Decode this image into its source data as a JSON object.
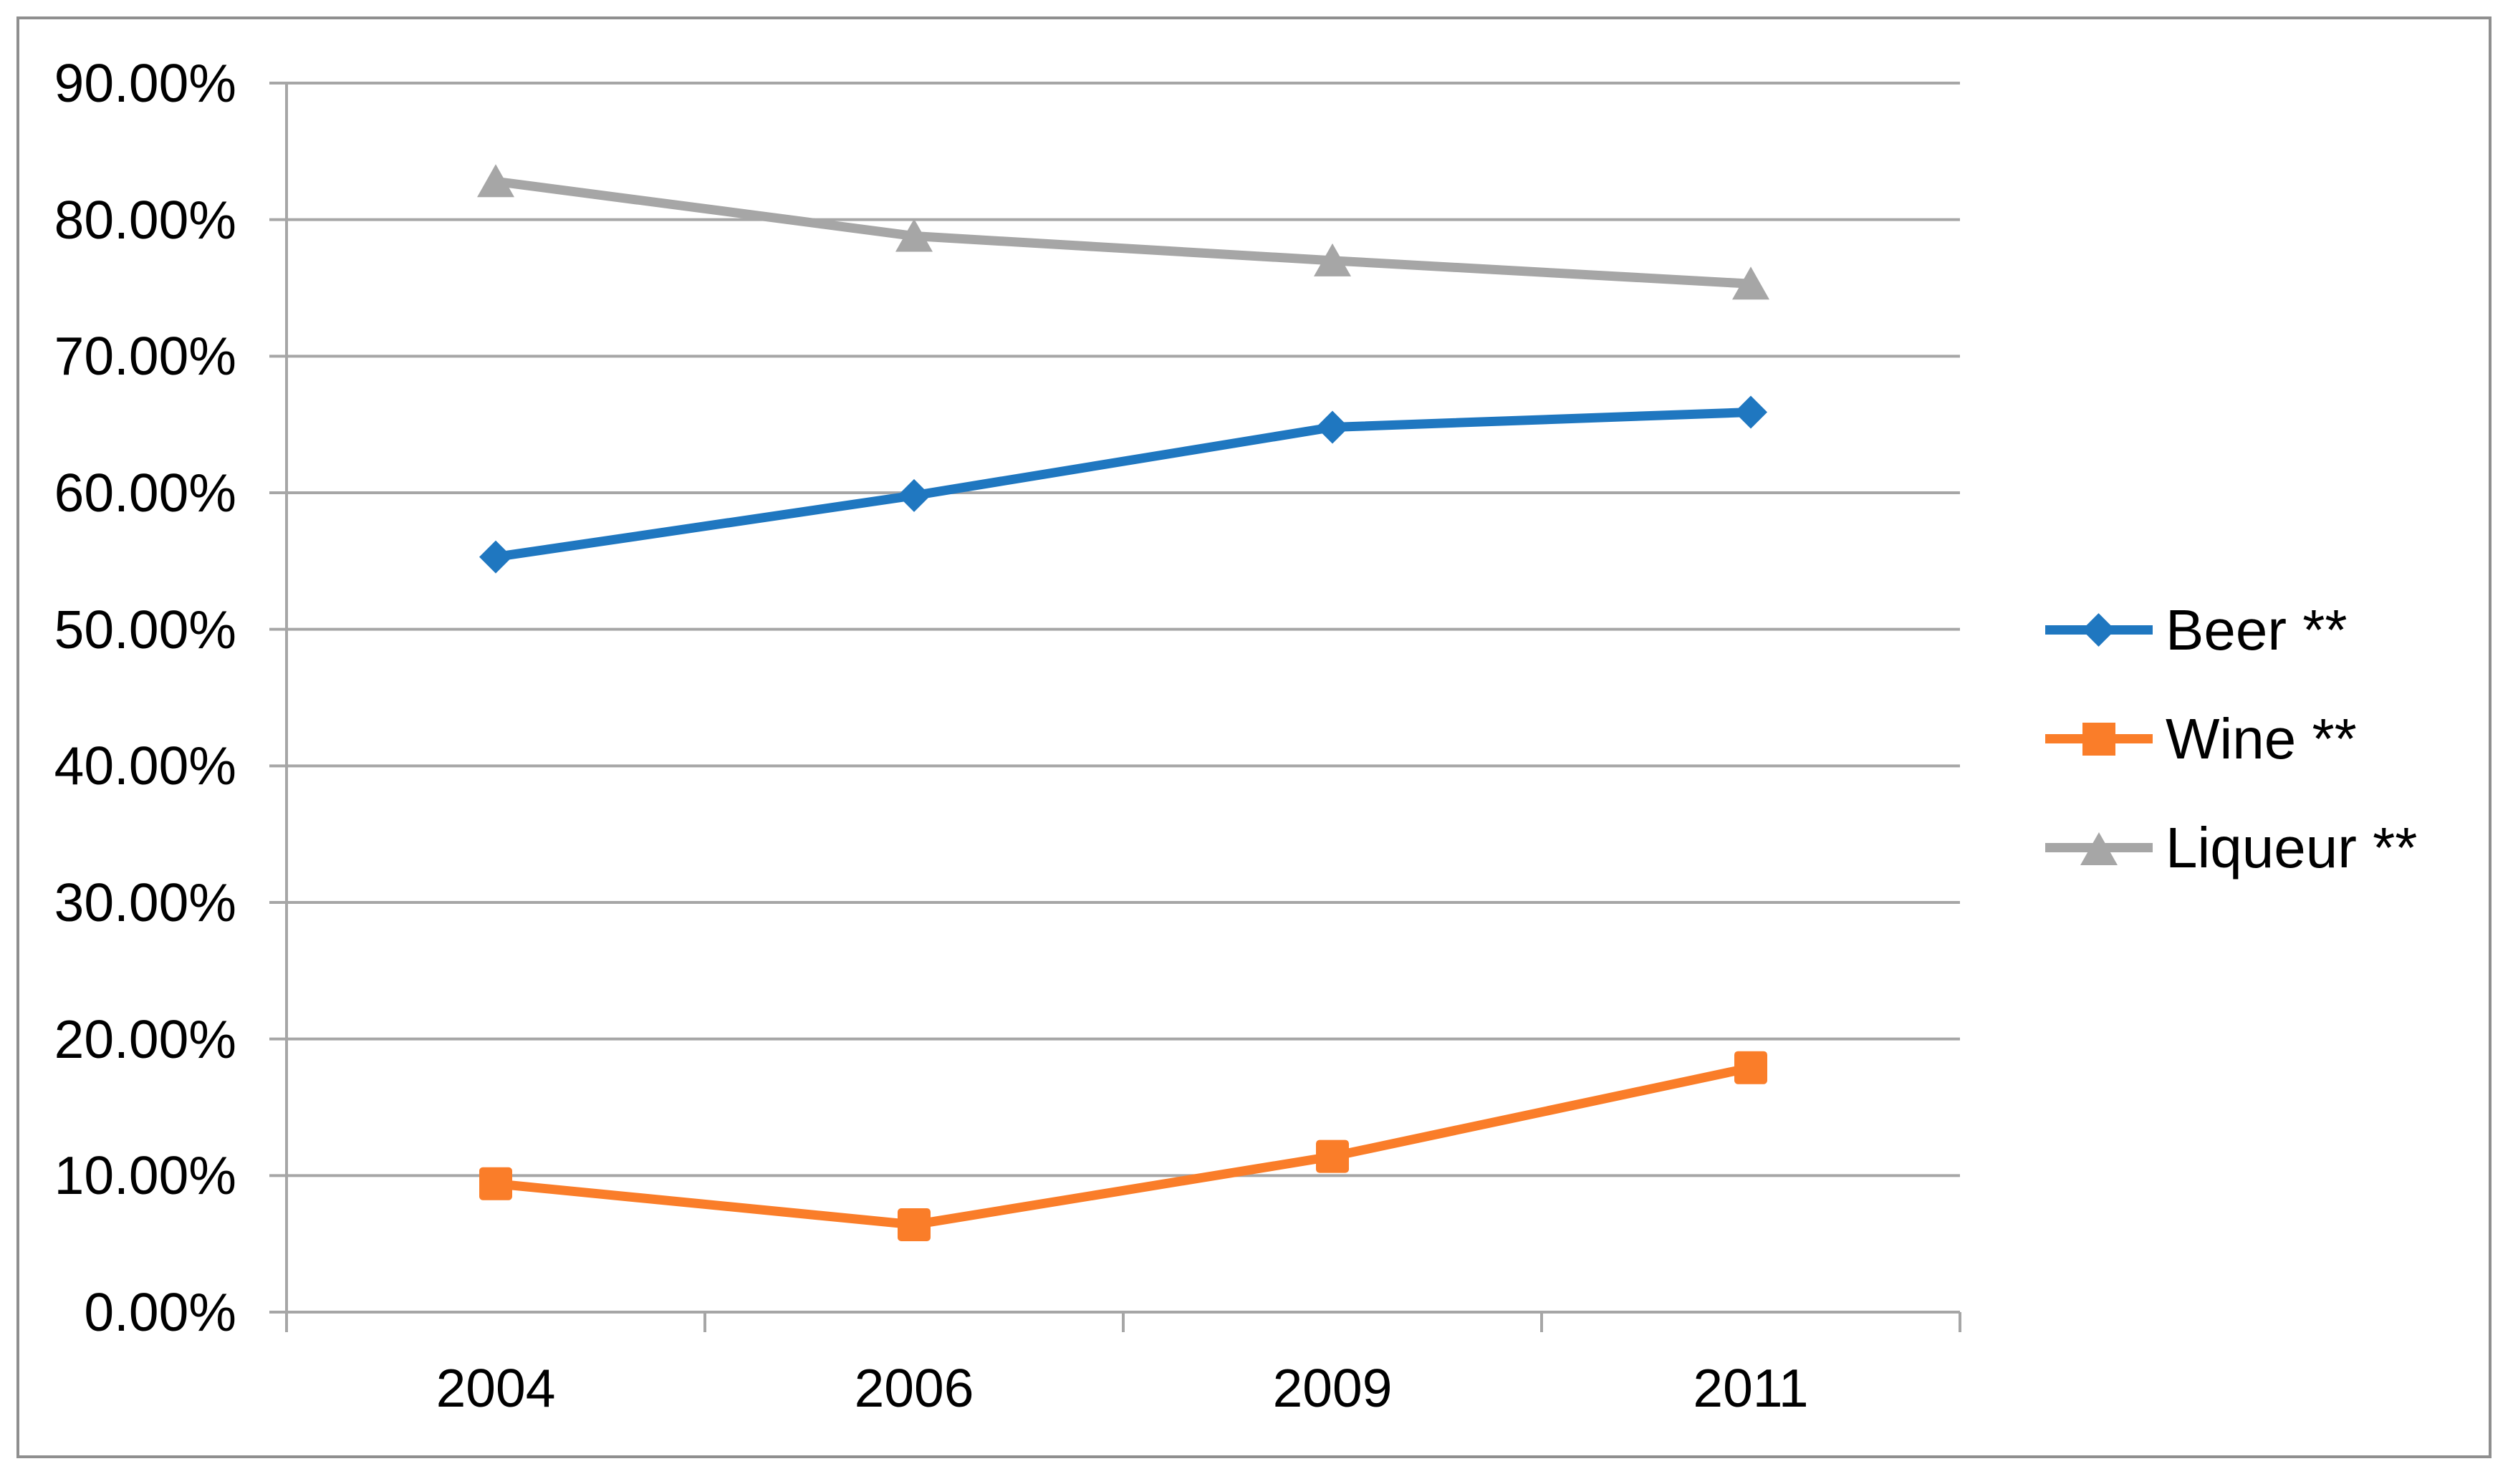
{
  "chart_data": {
    "type": "line",
    "categories": [
      "2004",
      "2006",
      "2009",
      "2011"
    ],
    "series": [
      {
        "name": "Beer **",
        "marker": "diamond",
        "color": "#1F77C0",
        "values": [
          55.3,
          59.8,
          64.8,
          65.9
        ]
      },
      {
        "name": "Wine **",
        "marker": "square",
        "color": "#FA7D29",
        "values": [
          9.4,
          6.4,
          11.4,
          17.9
        ]
      },
      {
        "name": "Liqueur **",
        "marker": "triangle",
        "color": "#A6A6A6",
        "values": [
          82.8,
          78.8,
          77.0,
          75.3
        ]
      }
    ],
    "ylim": [
      0,
      90
    ],
    "ytick_step": 10,
    "ytick_labels": [
      "0.00%",
      "10.00%",
      "20.00%",
      "30.00%",
      "40.00%",
      "50.00%",
      "60.00%",
      "70.00%",
      "80.00%",
      "90.00%"
    ],
    "grid": true,
    "legend_position": "right"
  },
  "colors": {
    "grid": "#A6A6A6",
    "axis": "#A6A6A6",
    "frame_border": "#8F8F8F",
    "text": "#000000"
  }
}
